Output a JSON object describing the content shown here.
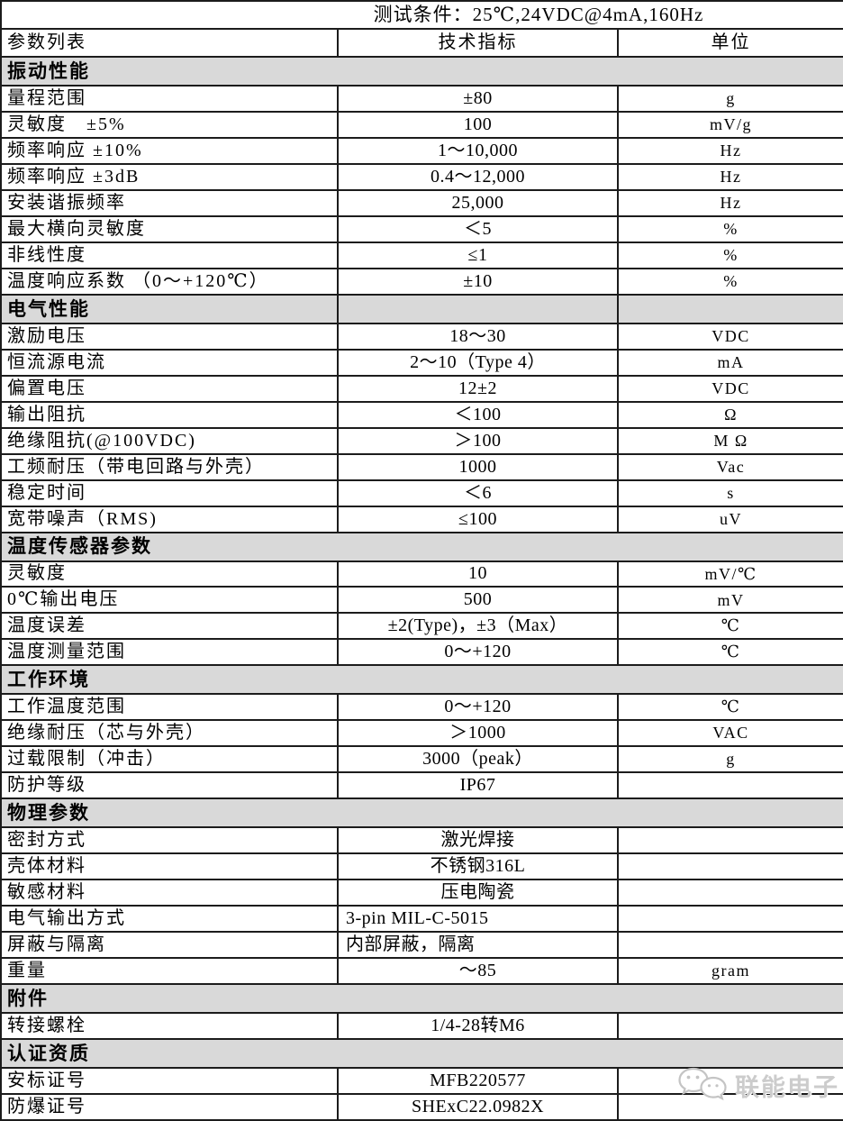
{
  "test_conditions": "测试条件：25℃,24VDC@4mA,160Hz",
  "columns": [
    "参数列表",
    "技术指标",
    "单位"
  ],
  "colors": {
    "section_bg": "#d9d9d9",
    "border": "#1c1c1c",
    "watermark": "#cccccc"
  },
  "watermark": {
    "text": "联能电子",
    "icon": "chat-bubbles-logo-icon"
  },
  "sections": [
    {
      "title": "振动性能",
      "split": false,
      "rows": [
        {
          "param": "量程范围",
          "value": "±80",
          "unit": "g"
        },
        {
          "param": "灵敏度　±5%",
          "value": "100",
          "unit": "mV/g"
        },
        {
          "param": "频率响应 ±10%",
          "value": "1～10,000",
          "unit": "Hz"
        },
        {
          "param": "频率响应 ±3dB",
          "value": "0.4～12,000",
          "unit": "Hz"
        },
        {
          "param": "安装谐振频率",
          "value": "25,000",
          "unit": "Hz"
        },
        {
          "param": "最大横向灵敏度",
          "value": "＜5",
          "unit": "%"
        },
        {
          "param": "非线性度",
          "value": "≤1",
          "unit": "%"
        },
        {
          "param": "温度响应系数 （0～+120℃）",
          "value": "±10",
          "unit": "%"
        }
      ]
    },
    {
      "title": "电气性能",
      "split": true,
      "rows": [
        {
          "param": "激励电压",
          "value": "18～30",
          "unit": "VDC"
        },
        {
          "param": "恒流源电流",
          "value": "2～10（Type 4）",
          "unit": "mA"
        },
        {
          "param": "偏置电压",
          "value": "12±2",
          "unit": "VDC"
        },
        {
          "param": "输出阻抗",
          "value": "＜100",
          "unit": "Ω"
        },
        {
          "param": "绝缘阻抗(@100VDC)",
          "value": "＞100",
          "unit": "M Ω"
        },
        {
          "param": "工频耐压（带电回路与外壳）",
          "value": "1000",
          "unit": "Vac"
        },
        {
          "param": "稳定时间",
          "value": "＜6",
          "unit": "s"
        },
        {
          "param": "宽带噪声（RMS)",
          "value": "≤100",
          "unit": "uV"
        }
      ]
    },
    {
      "title": "温度传感器参数",
      "split": false,
      "rows": [
        {
          "param": "灵敏度",
          "value": "10",
          "unit": "mV/℃"
        },
        {
          "param": "0℃输出电压",
          "value": "500",
          "unit": "mV"
        },
        {
          "param": "温度误差",
          "value": "±2(Type)，±3（Max）",
          "unit": "℃"
        },
        {
          "param": "温度测量范围",
          "value": "0～+120",
          "unit": "℃"
        }
      ]
    },
    {
      "title": "工作环境",
      "split": false,
      "rows": [
        {
          "param": "工作温度范围",
          "value": "0～+120",
          "unit": "℃"
        },
        {
          "param": "绝缘耐压（芯与外壳）",
          "value": "＞1000",
          "unit": "VAC"
        },
        {
          "param": "过载限制（冲击）",
          "value": "3000（peak）",
          "unit": "g"
        },
        {
          "param": "防护等级",
          "value": "IP67",
          "unit": ""
        }
      ]
    },
    {
      "title": "物理参数",
      "split": false,
      "rows": [
        {
          "param": "密封方式",
          "value": "激光焊接",
          "unit": ""
        },
        {
          "param": "壳体材料",
          "value": "不锈钢316L",
          "unit": ""
        },
        {
          "param": "敏感材料",
          "value": "压电陶瓷",
          "unit": ""
        },
        {
          "param": "电气输出方式",
          "value": "3-pin MIL-C-5015",
          "unit": "",
          "value_align": "left"
        },
        {
          "param": "屏蔽与隔离",
          "value": "内部屏蔽，隔离",
          "unit": "",
          "value_align": "left"
        },
        {
          "param": "重量",
          "value": "～85",
          "unit": "gram"
        }
      ]
    },
    {
      "title": "附件",
      "split": false,
      "rows": [
        {
          "param": "转接螺栓",
          "value": "1/4-28转M6",
          "unit": ""
        }
      ]
    },
    {
      "title": "认证资质",
      "split": false,
      "rows": [
        {
          "param": "安标证号",
          "value": "MFB220577",
          "unit": ""
        },
        {
          "param": "防爆证号",
          "value": "SHExC22.0982X",
          "unit": ""
        }
      ]
    }
  ]
}
